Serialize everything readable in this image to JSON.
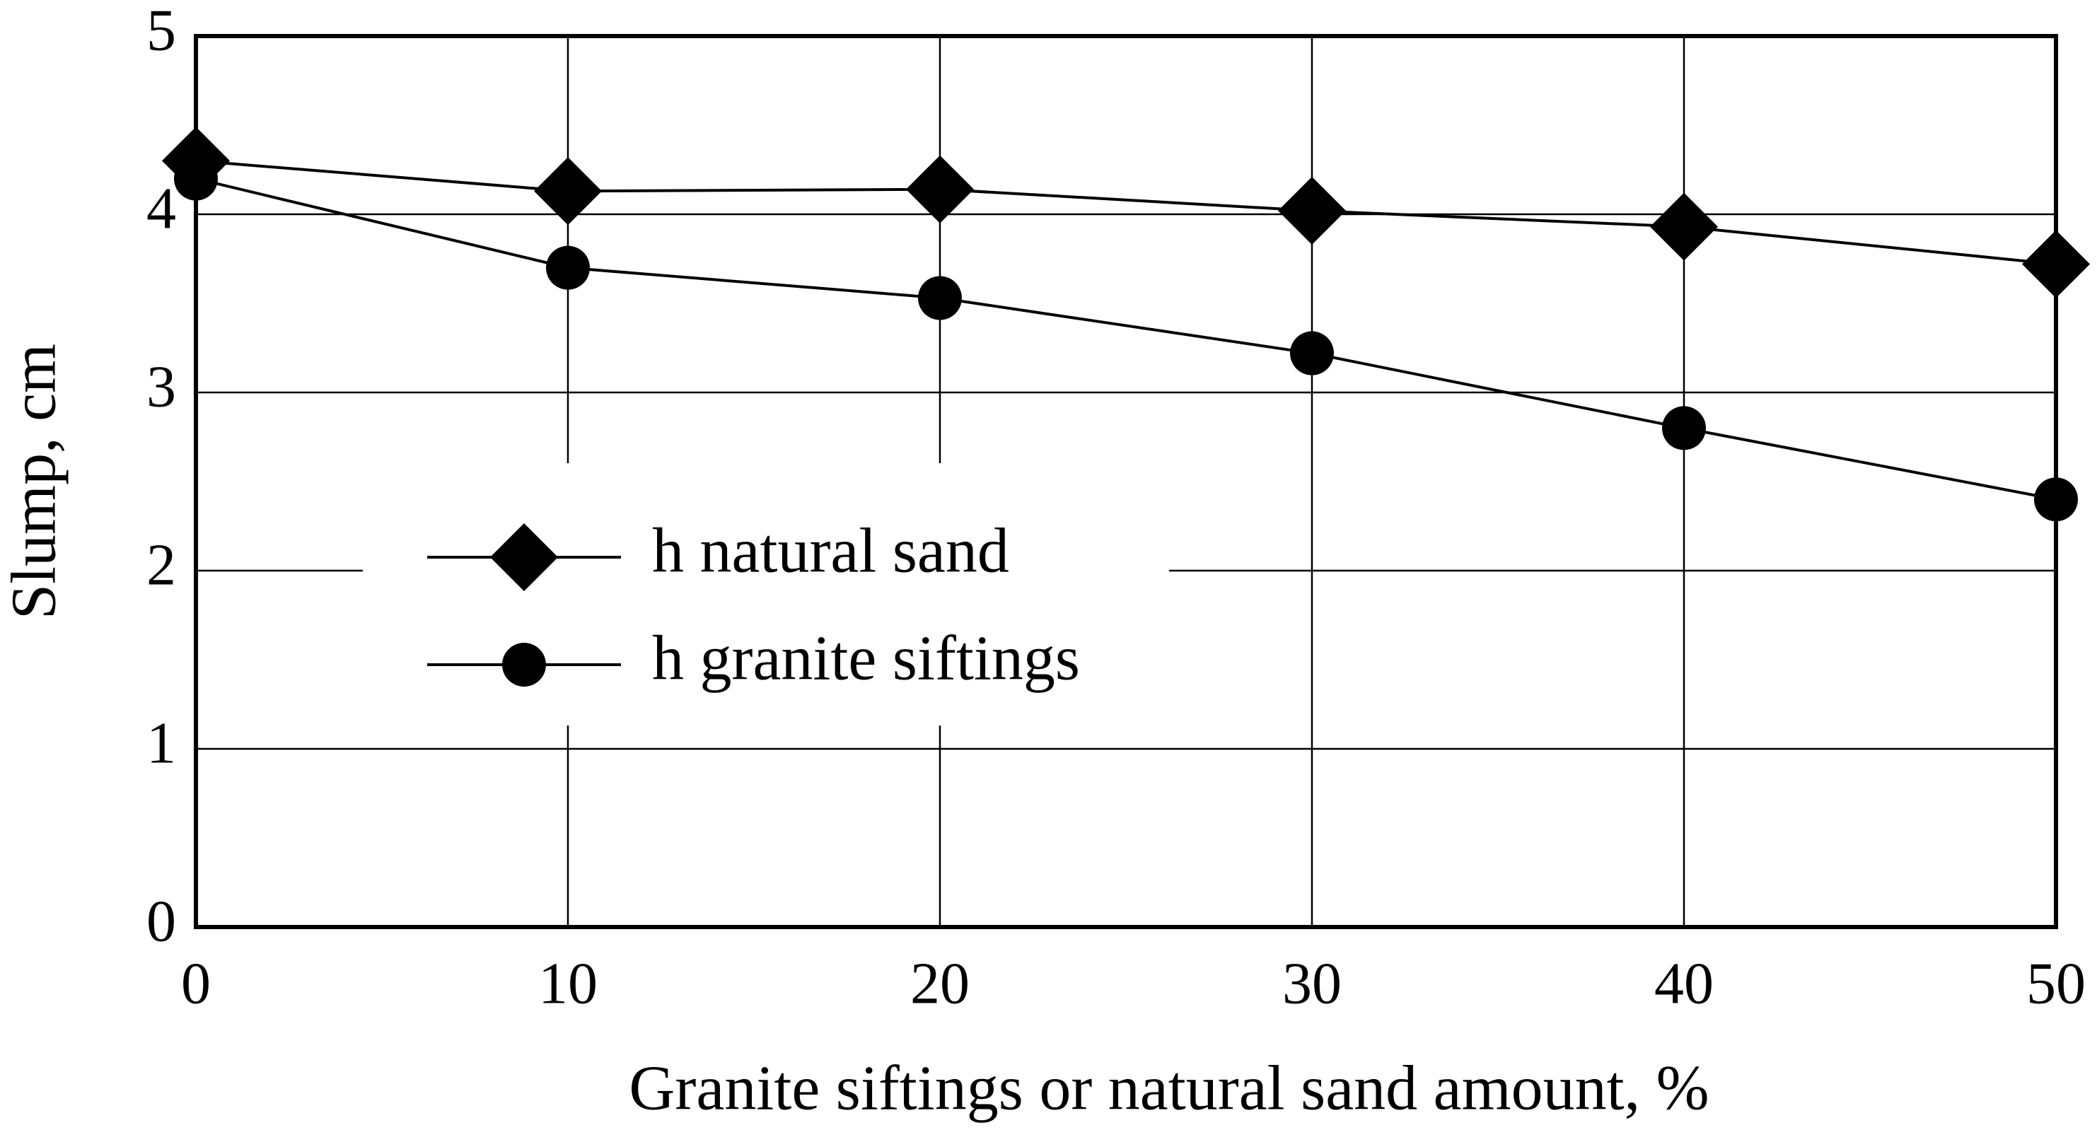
{
  "chart_data": {
    "type": "line",
    "x": [
      0,
      10,
      20,
      30,
      40,
      50
    ],
    "series": [
      {
        "name": "h natural sand",
        "color": "#000000",
        "marker": "diamond",
        "values": [
          4.3,
          4.13,
          4.14,
          4.02,
          3.93,
          3.72
        ]
      },
      {
        "name": "h granite siftings",
        "color": "#000000",
        "marker": "circle",
        "values": [
          4.2,
          3.7,
          3.53,
          3.22,
          2.8,
          2.4
        ]
      }
    ],
    "xlabel": "Granite siftings or natural sand amount, %",
    "ylabel": "Slump, cm",
    "xlim": [
      0,
      50
    ],
    "xticks": [
      0,
      10,
      20,
      30,
      40,
      50
    ],
    "ylim": [
      0,
      5
    ],
    "yticks": [
      0,
      1,
      2,
      3,
      4,
      5
    ],
    "grid": true,
    "legend": "center-left"
  }
}
